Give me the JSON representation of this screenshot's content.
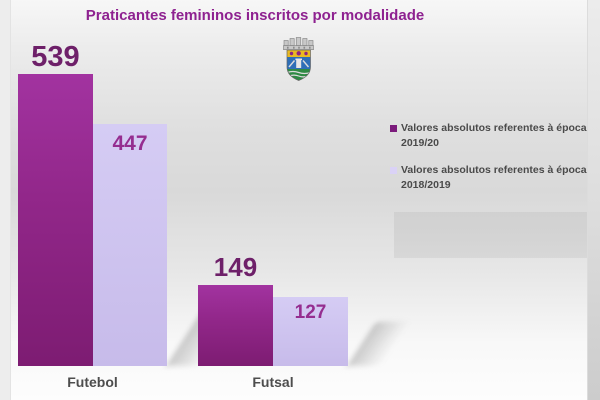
{
  "title": "Praticantes femininos inscritos por modalidade",
  "icons": {
    "crest": "municipal-coat-of-arms"
  },
  "chart_data": {
    "type": "bar",
    "title": "Praticantes femininos inscritos por modalidade",
    "categories": [
      "Futebol",
      "Futsal"
    ],
    "series": [
      {
        "name": "Valores absolutos referentes à época 2019/20",
        "color": "#92278A",
        "values": [
          539,
          149
        ]
      },
      {
        "name": "Valores absolutos referentes à época 2018/2019",
        "color": "#CCC1EE",
        "values": [
          447,
          127
        ]
      }
    ],
    "data_labels_shown": true,
    "xlabel": "",
    "ylabel": "",
    "ylim": [
      0,
      560
    ],
    "grid": false,
    "legend_position": "right"
  },
  "legend": {
    "items": [
      {
        "line1": "Valores absolutos referentes à época",
        "line2": "2019/20",
        "swatch_style": "background:#7B1B7B"
      },
      {
        "line1": "Valores absolutos referentes à época",
        "line2": "2018/2019",
        "swatch_style": "background:#DAD2F6"
      }
    ]
  },
  "colors": {
    "title": "#8E2190",
    "value_label_dark": "#6E2069",
    "value_label_light": "#952D90",
    "category_label": "#4D4D4D",
    "legend_text": "#4A4A4A"
  }
}
